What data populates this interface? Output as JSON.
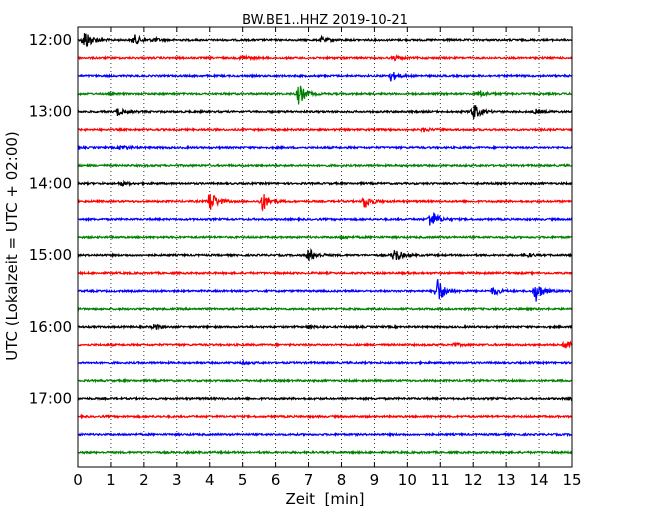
{
  "chart_data": {
    "type": "line",
    "title": "BW.BE1..HHZ 2019-10-21",
    "xlabel": "Zeit  [min]",
    "ylabel": "UTC (Lokalzeit = UTC + 02:00)",
    "xlim": [
      0,
      15
    ],
    "x_ticks": [
      "0",
      "1",
      "2",
      "3",
      "4",
      "5",
      "6",
      "7",
      "8",
      "9",
      "10",
      "11",
      "12",
      "13",
      "14",
      "15"
    ],
    "y_ticks": [
      "12:00",
      "13:00",
      "14:00",
      "15:00",
      "16:00",
      "17:00"
    ],
    "grid": "vertical dotted at each minute",
    "trace_interval_min": 15,
    "trace_colors": [
      "#000000",
      "#ff0000",
      "#0000ff",
      "#008000"
    ],
    "series": [
      {
        "start": "12:00",
        "events": [
          [
            0.2,
            1.0
          ],
          [
            1.7,
            0.5
          ],
          [
            7.4,
            0.25
          ],
          [
            2.3,
            0.15
          ]
        ]
      },
      {
        "start": "12:15",
        "events": [
          [
            5.0,
            0.2
          ],
          [
            9.6,
            0.2
          ]
        ]
      },
      {
        "start": "12:30",
        "events": [
          [
            9.5,
            0.45
          ]
        ]
      },
      {
        "start": "12:45",
        "events": [
          [
            6.7,
            1.0
          ],
          [
            12.2,
            0.3
          ]
        ]
      },
      {
        "start": "13:00",
        "events": [
          [
            1.2,
            0.35
          ],
          [
            12.0,
            0.8
          ],
          [
            13.9,
            0.2
          ]
        ]
      },
      {
        "start": "13:15",
        "events": [
          [
            10.5,
            0.15
          ]
        ]
      },
      {
        "start": "13:30",
        "events": [
          [
            1.3,
            0.25
          ]
        ]
      },
      {
        "start": "13:45",
        "events": []
      },
      {
        "start": "14:00",
        "events": [
          [
            1.3,
            0.2
          ]
        ]
      },
      {
        "start": "14:15",
        "events": [
          [
            4.0,
            1.1
          ],
          [
            5.6,
            0.9
          ],
          [
            8.7,
            0.7
          ]
        ]
      },
      {
        "start": "14:30",
        "events": [
          [
            10.7,
            1.0
          ]
        ]
      },
      {
        "start": "14:45",
        "events": [
          [
            8.0,
            0.1
          ]
        ]
      },
      {
        "start": "15:00",
        "events": [
          [
            7.0,
            0.7
          ],
          [
            9.6,
            0.7
          ],
          [
            13.6,
            0.2
          ]
        ]
      },
      {
        "start": "15:15",
        "events": []
      },
      {
        "start": "15:30",
        "events": [
          [
            10.9,
            1.4
          ],
          [
            12.6,
            0.4
          ],
          [
            13.9,
            1.0
          ]
        ]
      },
      {
        "start": "15:45",
        "events": []
      },
      {
        "start": "16:00",
        "events": [
          [
            2.3,
            0.25
          ],
          [
            7.0,
            0.15
          ]
        ]
      },
      {
        "start": "16:15",
        "events": [
          [
            14.8,
            0.5
          ],
          [
            11.4,
            0.15
          ]
        ]
      },
      {
        "start": "16:30",
        "events": [
          [
            5.0,
            0.1
          ]
        ]
      },
      {
        "start": "16:45",
        "events": []
      },
      {
        "start": "17:00",
        "events": [
          [
            15.0,
            0.1
          ]
        ]
      },
      {
        "start": "17:15",
        "events": []
      },
      {
        "start": "17:30",
        "events": []
      },
      {
        "start": "17:45",
        "events": []
      }
    ]
  }
}
